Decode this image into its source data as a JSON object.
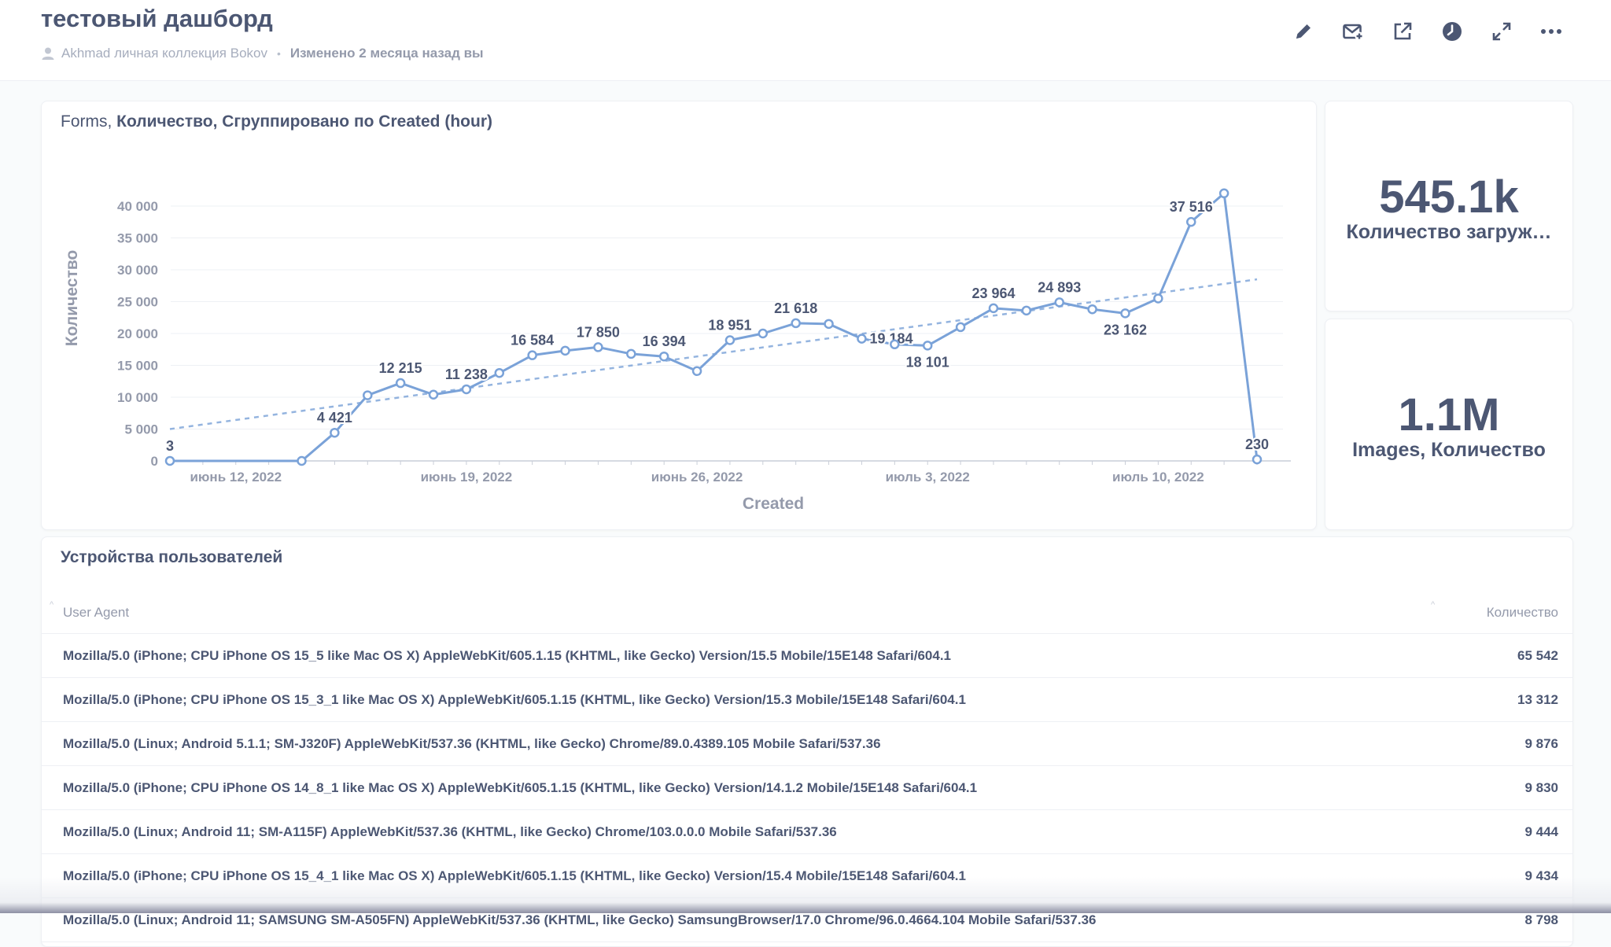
{
  "header": {
    "title": "тестовый дашборд",
    "collection": "Akhmad личная коллекция Bokov",
    "separator": "•",
    "edited": "Изменено 2 месяца назад вы",
    "actions": [
      "pencil-icon",
      "subscribe-icon",
      "share-icon",
      "clock-icon",
      "fullscreen-icon",
      "more-icon"
    ]
  },
  "line_card": {
    "title_prefix": "Forms, ",
    "title_rest": "Количество, Сгруппировано по Created (hour)"
  },
  "chart_data": {
    "type": "line",
    "title": "Forms, Количество, Сгруппировано по Created (hour)",
    "xlabel": "Created",
    "ylabel": "Количество",
    "ylim": [
      0,
      40000
    ],
    "yticks": [
      0,
      5000,
      10000,
      15000,
      20000,
      25000,
      30000,
      35000,
      40000
    ],
    "ytick_labels": [
      "0",
      "5 000",
      "10 000",
      "15 000",
      "20 000",
      "25 000",
      "30 000",
      "35 000",
      "40 000"
    ],
    "xtick_labels": [
      "июнь 12, 2022",
      "июнь 19, 2022",
      "июнь 26, 2022",
      "июль 3, 2022",
      "июль 10, 2022"
    ],
    "xtick_days": [
      2,
      9,
      16,
      23,
      30
    ],
    "x_days": [
      0,
      4,
      5,
      6,
      7,
      8,
      9,
      10,
      11,
      12,
      13,
      14,
      15,
      16,
      17,
      18,
      19,
      20,
      21,
      22,
      23,
      24,
      25,
      26,
      27,
      28,
      29,
      30,
      31,
      32,
      33
    ],
    "values": [
      3,
      0,
      4421,
      10300,
      12215,
      10400,
      11238,
      13800,
      16584,
      17300,
      17850,
      16800,
      16394,
      14100,
      18951,
      20000,
      21618,
      21500,
      19184,
      18300,
      18101,
      21000,
      23964,
      23600,
      24893,
      23800,
      23162,
      25500,
      37516,
      42000,
      230
    ],
    "labels": [
      "3",
      "",
      "4 421",
      "",
      "12 215",
      "",
      "11 238",
      "",
      "16 584",
      "",
      "17 850",
      "",
      "16 394",
      "",
      "18 951",
      "",
      "21 618",
      "",
      "19 184",
      "",
      "18 101",
      "",
      "23 964",
      "",
      "24 893",
      "",
      "23 162",
      "",
      "37 516",
      "",
      "230"
    ],
    "label_pos": [
      "above",
      "",
      "above",
      "",
      "above",
      "",
      "above",
      "",
      "above",
      "",
      "above",
      "",
      "above",
      "",
      "above",
      "",
      "above",
      "",
      "right",
      "",
      "below",
      "",
      "above",
      "",
      "above",
      "",
      "below",
      "",
      "above",
      "",
      "above"
    ],
    "trendline": {
      "start": 5000,
      "end": 28500
    },
    "color": "#7aa2d8",
    "grid": true
  },
  "scalars": [
    {
      "value": "545.1k",
      "label": "Количество загруж…"
    },
    {
      "value": "1.1M",
      "label": "Images, Количество"
    }
  ],
  "table": {
    "title": "Устройства пользователей",
    "columns": [
      "User Agent",
      "Количество"
    ],
    "rows": [
      {
        "ua": "Mozilla/5.0 (iPhone; CPU iPhone OS 15_5 like Mac OS X) AppleWebKit/605.1.15 (KHTML, like Gecko) Version/15.5 Mobile/15E148 Safari/604.1",
        "count": "65 542"
      },
      {
        "ua": "Mozilla/5.0 (iPhone; CPU iPhone OS 15_3_1 like Mac OS X) AppleWebKit/605.1.15 (KHTML, like Gecko) Version/15.3 Mobile/15E148 Safari/604.1",
        "count": "13 312"
      },
      {
        "ua": "Mozilla/5.0 (Linux; Android 5.1.1; SM-J320F) AppleWebKit/537.36 (KHTML, like Gecko) Chrome/89.0.4389.105 Mobile Safari/537.36",
        "count": "9 876"
      },
      {
        "ua": "Mozilla/5.0 (iPhone; CPU iPhone OS 14_8_1 like Mac OS X) AppleWebKit/605.1.15 (KHTML, like Gecko) Version/14.1.2 Mobile/15E148 Safari/604.1",
        "count": "9 830"
      },
      {
        "ua": "Mozilla/5.0 (Linux; Android 11; SM-A115F) AppleWebKit/537.36 (KHTML, like Gecko) Chrome/103.0.0.0 Mobile Safari/537.36",
        "count": "9 444"
      },
      {
        "ua": "Mozilla/5.0 (iPhone; CPU iPhone OS 15_4_1 like Mac OS X) AppleWebKit/605.1.15 (KHTML, like Gecko) Version/15.4 Mobile/15E148 Safari/604.1",
        "count": "9 434"
      },
      {
        "ua": "Mozilla/5.0 (Linux; Android 11; SAMSUNG SM-A505FN) AppleWebKit/537.36 (KHTML, like Gecko) SamsungBrowser/17.0 Chrome/96.0.4664.104 Mobile Safari/537.36",
        "count": "8 798"
      }
    ]
  }
}
